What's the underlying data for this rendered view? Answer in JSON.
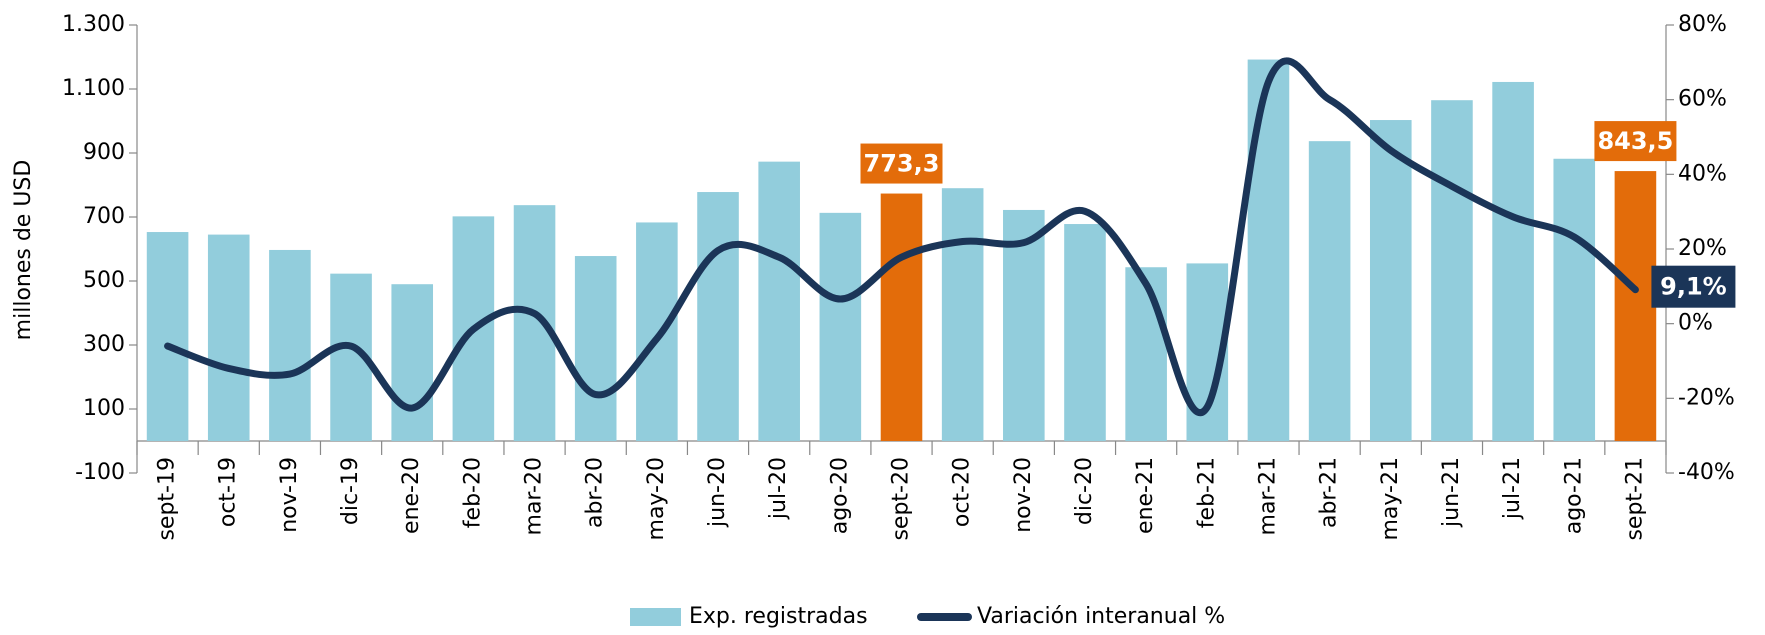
{
  "chart_data": {
    "type": "bar_line",
    "y_label": "millones de USD",
    "categories": [
      "sept-19",
      "oct-19",
      "nov-19",
      "dic-19",
      "ene-20",
      "feb-20",
      "mar-20",
      "abr-20",
      "may-20",
      "jun-20",
      "jul-20",
      "ago-20",
      "sept-20",
      "oct-20",
      "nov-20",
      "dic-20",
      "ene-21",
      "feb-21",
      "mar-21",
      "abr-21",
      "may-21",
      "jun-21",
      "jul-21",
      "ago-21",
      "sept-21"
    ],
    "series": [
      {
        "name": "Exp. registradas",
        "type": "bar",
        "color": "#92cddc",
        "highlight_color": "#e36c0a",
        "values": [
          653,
          645,
          597,
          523,
          490,
          702,
          737,
          578,
          683,
          778,
          873,
          713,
          773.3,
          790,
          722,
          678,
          543,
          555,
          1192,
          937,
          1003,
          1065,
          1122,
          882,
          843.5
        ],
        "value_labels": [
          null,
          null,
          null,
          null,
          null,
          null,
          null,
          null,
          null,
          null,
          null,
          null,
          "773,3",
          null,
          null,
          null,
          null,
          null,
          null,
          null,
          null,
          null,
          null,
          null,
          "843,5"
        ]
      },
      {
        "name": "Variación interanual %",
        "type": "line",
        "axis": "y2",
        "color": "#1b3558",
        "values": [
          -6,
          -12,
          -13.5,
          -6,
          -22.6,
          -1.5,
          2.7,
          -19,
          -4,
          19.6,
          17.8,
          6.6,
          17.8,
          22,
          21.7,
          30.1,
          10.6,
          -22.3,
          64.8,
          60,
          46.4,
          36.8,
          28.6,
          23.2,
          9.1
        ],
        "value_labels": [
          null,
          null,
          null,
          null,
          null,
          null,
          null,
          null,
          null,
          null,
          null,
          null,
          null,
          null,
          null,
          null,
          null,
          null,
          null,
          null,
          null,
          null,
          null,
          null,
          "9,1%"
        ]
      }
    ],
    "ylim": [
      -100,
      1300
    ],
    "yticks": [
      -100,
      100,
      300,
      500,
      700,
      900,
      {
        "value": 1100,
        "label": "1.100"
      },
      {
        "value": 1300,
        "label": "1.300"
      }
    ],
    "y2lim": [
      -40,
      80
    ],
    "y2ticks": [
      {
        "value": -40,
        "label": "-40%"
      },
      {
        "value": -20,
        "label": "-20%"
      },
      {
        "value": 0,
        "label": "0%"
      },
      {
        "value": 20,
        "label": "20%"
      },
      {
        "value": 40,
        "label": "40%"
      },
      {
        "value": 60,
        "label": "60%"
      },
      {
        "value": 80,
        "label": "80%"
      }
    ],
    "grid": false,
    "legend": "bottom"
  }
}
